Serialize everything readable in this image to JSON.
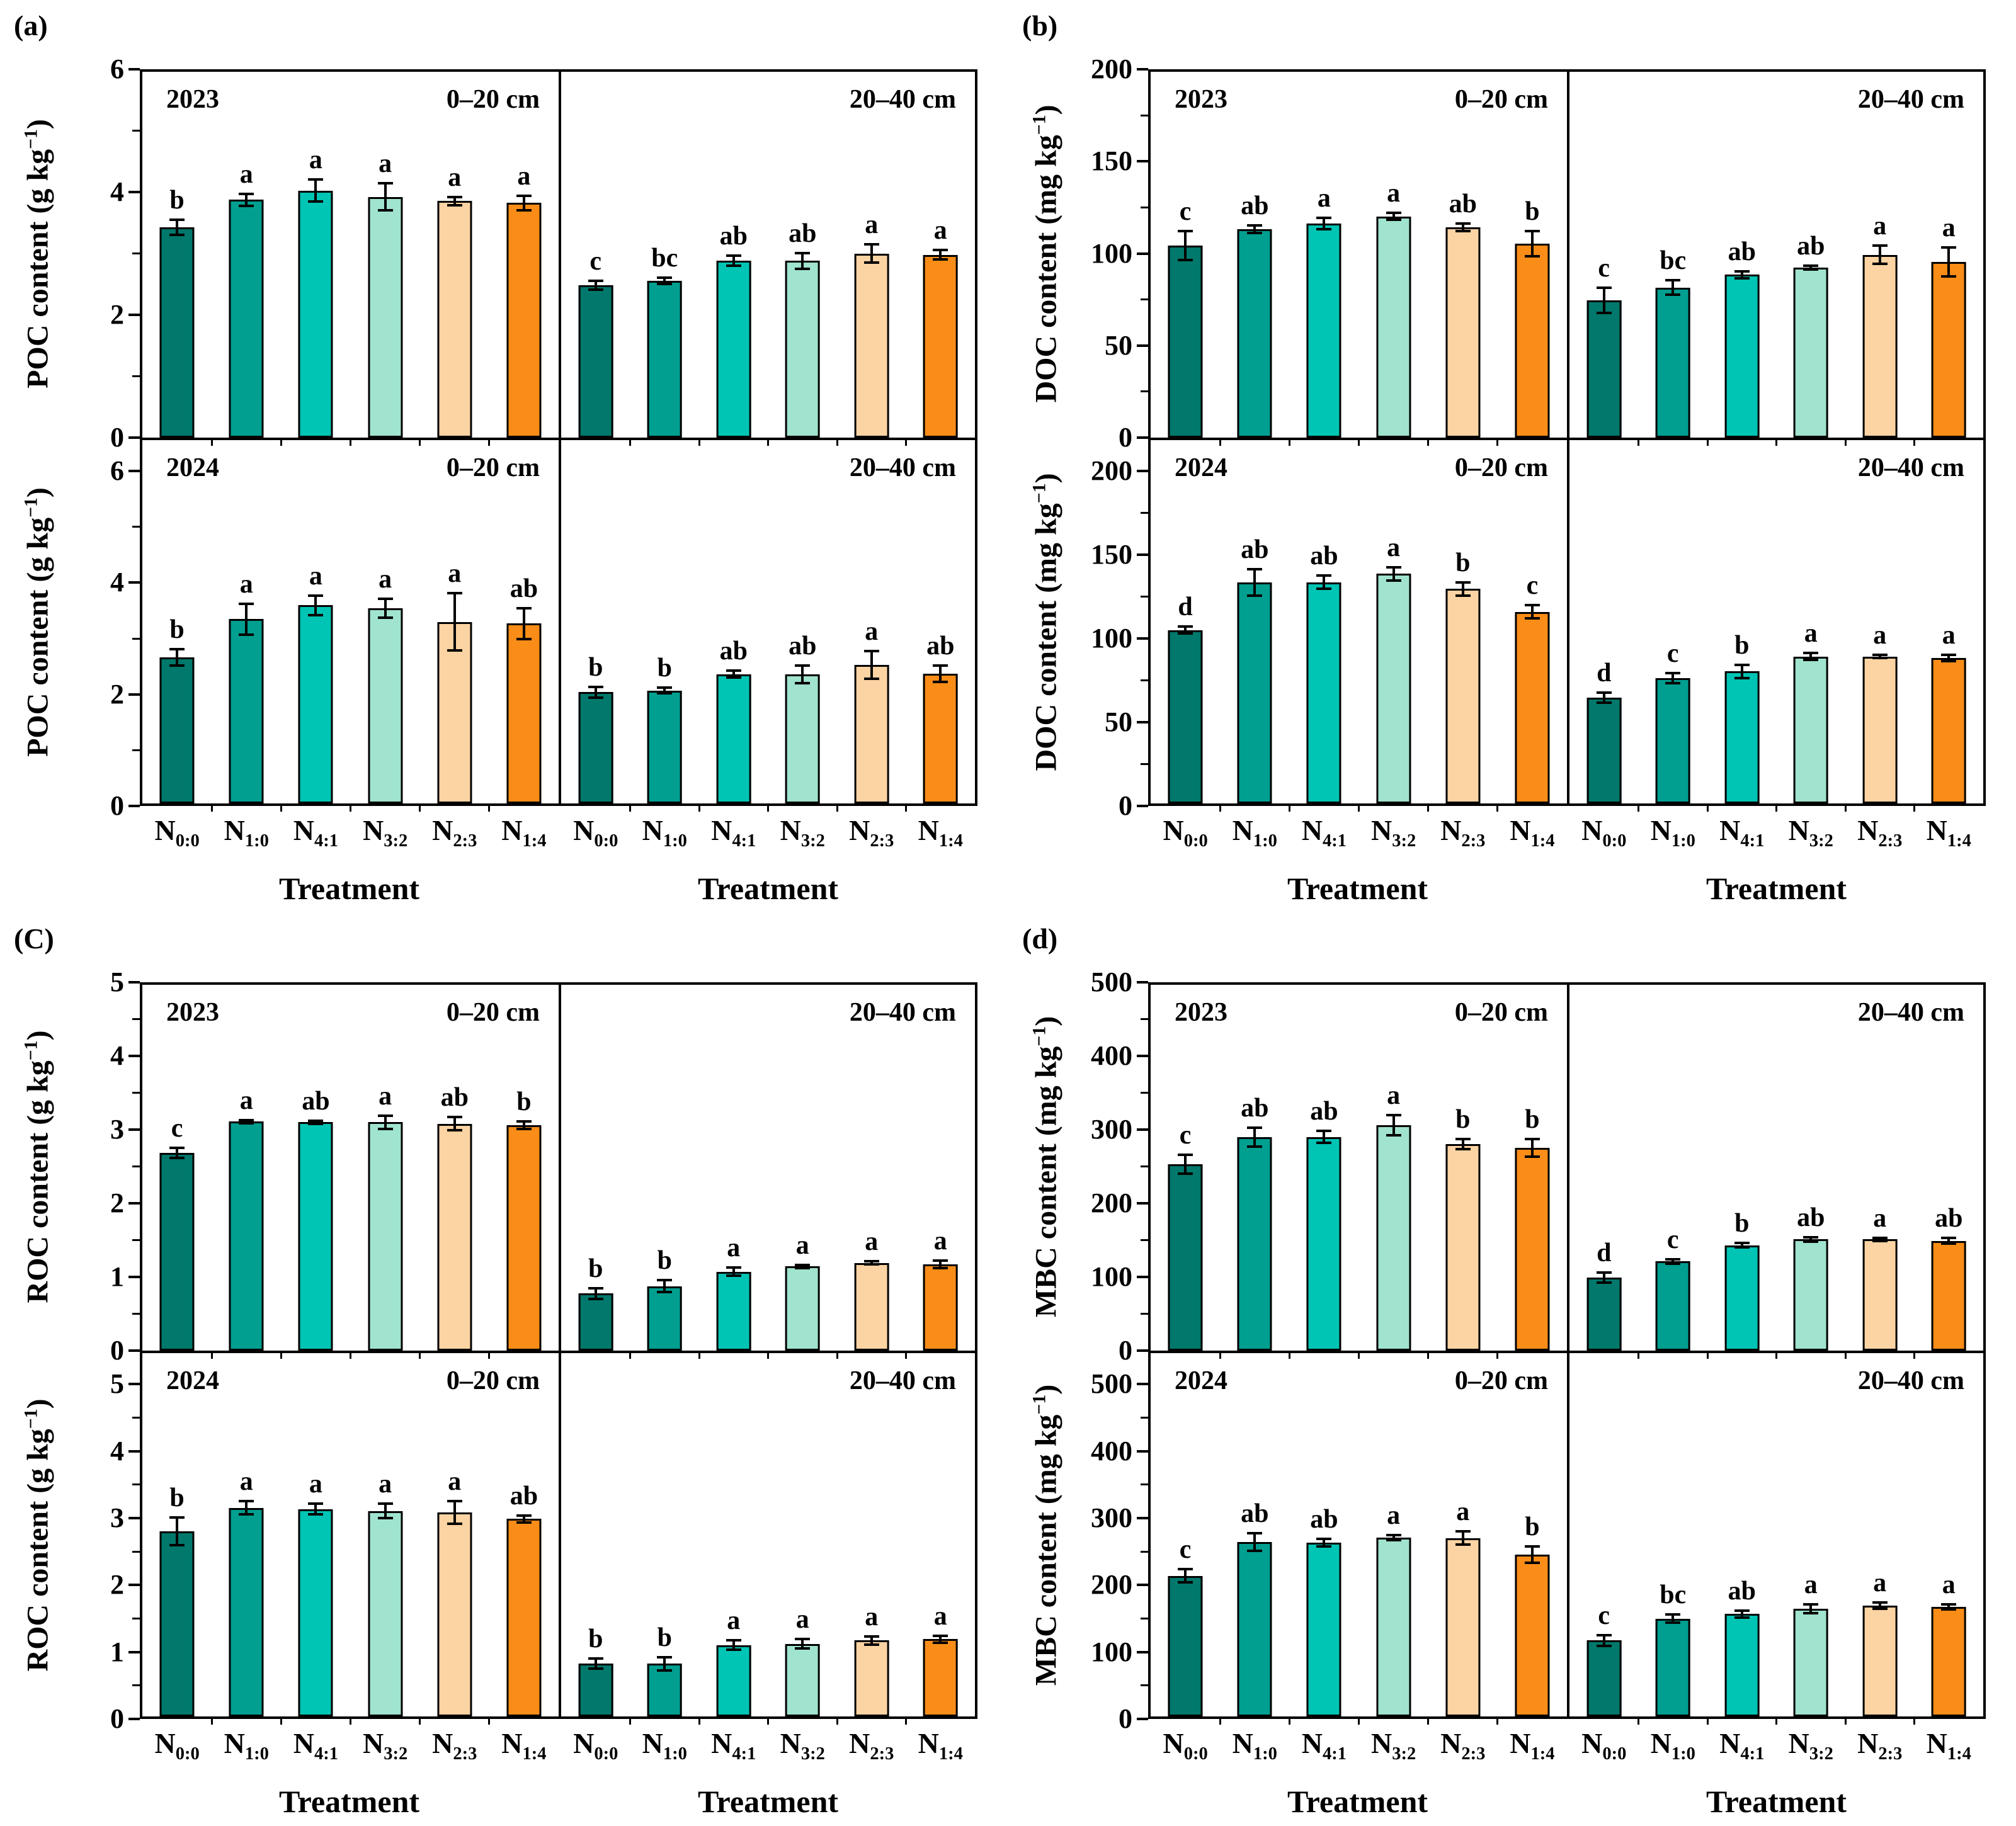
{
  "chart_data": {
    "type": "bar",
    "x_axis_title": "Treatment",
    "categories": [
      {
        "base": "N",
        "sub": "0:0"
      },
      {
        "base": "N",
        "sub": "1:0"
      },
      {
        "base": "N",
        "sub": "4:1"
      },
      {
        "base": "N",
        "sub": "3:2"
      },
      {
        "base": "N",
        "sub": "2:3"
      },
      {
        "base": "N",
        "sub": "1:4"
      }
    ],
    "bar_colors": [
      "#00786b",
      "#009f90",
      "#00c5b4",
      "#a0e3cf",
      "#fcd3a2",
      "#fa8d17"
    ],
    "axis_color": "#000000",
    "error_bar_color": "#000000",
    "panels": [
      {
        "label": "(a)",
        "ylabel": {
          "pre": "POC content (g kg",
          "sup": "−1",
          "post": ")"
        },
        "ymax": 6,
        "yticks": [
          0,
          2,
          4,
          6
        ],
        "ytick_step": 2,
        "rows": [
          {
            "year": "2023",
            "headroom": 1.0,
            "subplots": [
              {
                "depth": "0–20 cm",
                "values": [
                  3.45,
                  3.9,
                  4.05,
                  3.95,
                  3.88,
                  3.85
                ],
                "errors": [
                  0.12,
                  0.1,
                  0.18,
                  0.22,
                  0.07,
                  0.12
                ],
                "letters": [
                  "b",
                  "a",
                  "a",
                  "a",
                  "a",
                  "a"
                ]
              },
              {
                "depth": "20–40 cm",
                "values": [
                  2.5,
                  2.57,
                  2.9,
                  2.9,
                  3.02,
                  3.0
                ],
                "errors": [
                  0.07,
                  0.05,
                  0.08,
                  0.13,
                  0.15,
                  0.08
                ],
                "letters": [
                  "c",
                  "bc",
                  "ab",
                  "ab",
                  "a",
                  "a"
                ]
              }
            ]
          },
          {
            "year": "2024",
            "headroom": 1.1,
            "subplots": [
              {
                "depth": "0–20 cm",
                "values": [
                  2.65,
                  3.35,
                  3.6,
                  3.55,
                  3.3,
                  3.27
                ],
                "errors": [
                  0.15,
                  0.28,
                  0.18,
                  0.17,
                  0.52,
                  0.28
                ],
                "letters": [
                  "b",
                  "a",
                  "a",
                  "a",
                  "a",
                  "ab"
                ]
              },
              {
                "depth": "20–40 cm",
                "values": [
                  2.02,
                  2.05,
                  2.35,
                  2.35,
                  2.52,
                  2.36
                ],
                "errors": [
                  0.1,
                  0.05,
                  0.06,
                  0.16,
                  0.25,
                  0.15
                ],
                "letters": [
                  "b",
                  "b",
                  "ab",
                  "ab",
                  "a",
                  "ab"
                ]
              }
            ]
          }
        ]
      },
      {
        "label": "(b)",
        "ylabel": {
          "pre": "DOC content (mg kg",
          "sup": "−1",
          "post": ")"
        },
        "ymax": 200,
        "yticks": [
          0,
          50,
          100,
          150,
          200
        ],
        "ytick_step": 50,
        "rows": [
          {
            "year": "2023",
            "headroom": 1.0,
            "subplots": [
              {
                "depth": "0–20 cm",
                "values": [
                  105,
                  114,
                  117,
                  121,
                  115,
                  106
                ],
                "errors": [
                  8,
                  2,
                  3,
                  2,
                  2,
                  7
                ],
                "letters": [
                  "c",
                  "ab",
                  "a",
                  "a",
                  "ab",
                  "b"
                ]
              },
              {
                "depth": "20–40 cm",
                "values": [
                  75,
                  82,
                  89,
                  93,
                  100,
                  96
                ],
                "errors": [
                  7,
                  4,
                  2,
                  1,
                  5,
                  8
                ],
                "letters": [
                  "c",
                  "bc",
                  "ab",
                  "ab",
                  "a",
                  "a"
                ]
              }
            ]
          },
          {
            "year": "2024",
            "headroom": 1.1,
            "subplots": [
              {
                "depth": "0–20 cm",
                "values": [
                  105,
                  134,
                  134,
                  139,
                  130,
                  116
                ],
                "errors": [
                  2,
                  8,
                  4,
                  4,
                  4,
                  4
                ],
                "letters": [
                  "d",
                  "ab",
                  "ab",
                  "a",
                  "b",
                  "c"
                ]
              },
              {
                "depth": "20–40 cm",
                "values": [
                  64,
                  76,
                  80,
                  89,
                  89,
                  88
                ],
                "errors": [
                  3,
                  3,
                  4,
                  2,
                  1,
                  2
                ],
                "letters": [
                  "d",
                  "c",
                  "b",
                  "a",
                  "a",
                  "a"
                ]
              }
            ]
          }
        ]
      },
      {
        "label": "(C)",
        "ylabel": {
          "pre": "ROC content (g kg",
          "sup": "−1",
          "post": ")"
        },
        "ymax": 5,
        "yticks": [
          0,
          1,
          2,
          3,
          4,
          5
        ],
        "ytick_step": 1,
        "rows": [
          {
            "year": "2023",
            "headroom": 1.0,
            "subplots": [
              {
                "depth": "0–20 cm",
                "values": [
                  2.7,
                  3.13,
                  3.12,
                  3.12,
                  3.1,
                  3.08
                ],
                "errors": [
                  0.07,
                  0.02,
                  0.02,
                  0.09,
                  0.09,
                  0.05
                ],
                "letters": [
                  "c",
                  "a",
                  "ab",
                  "a",
                  "ab",
                  "b"
                ]
              },
              {
                "depth": "20–40 cm",
                "values": [
                  0.78,
                  0.88,
                  1.08,
                  1.15,
                  1.2,
                  1.18
                ],
                "errors": [
                  0.07,
                  0.08,
                  0.06,
                  0.02,
                  0.02,
                  0.05
                ],
                "letters": [
                  "b",
                  "b",
                  "a",
                  "a",
                  "a",
                  "a"
                ]
              }
            ]
          },
          {
            "year": "2024",
            "headroom": 1.1,
            "subplots": [
              {
                "depth": "0–20 cm",
                "values": [
                  2.8,
                  3.16,
                  3.14,
                  3.11,
                  3.09,
                  2.99
                ],
                "errors": [
                  0.21,
                  0.1,
                  0.08,
                  0.11,
                  0.17,
                  0.05
                ],
                "letters": [
                  "b",
                  "a",
                  "a",
                  "a",
                  "a",
                  "ab"
                ]
              },
              {
                "depth": "20–40 cm",
                "values": [
                  0.8,
                  0.8,
                  1.08,
                  1.1,
                  1.15,
                  1.17
                ],
                "errors": [
                  0.08,
                  0.1,
                  0.07,
                  0.07,
                  0.06,
                  0.05
                ],
                "letters": [
                  "b",
                  "b",
                  "a",
                  "a",
                  "a",
                  "a"
                ]
              }
            ]
          }
        ]
      },
      {
        "label": "(d)",
        "ylabel": {
          "pre": "MBC content (mg kg",
          "sup": "−1",
          "post": ")"
        },
        "ymax": 500,
        "yticks": [
          0,
          100,
          200,
          300,
          400,
          500
        ],
        "ytick_step": 100,
        "rows": [
          {
            "year": "2023",
            "headroom": 1.0,
            "subplots": [
              {
                "depth": "0–20 cm",
                "values": [
                  255,
                  292,
                  292,
                  308,
                  282,
                  277
                ],
                "errors": [
                  13,
                  13,
                  8,
                  14,
                  7,
                  12
                ],
                "letters": [
                  "c",
                  "ab",
                  "ab",
                  "a",
                  "b",
                  "b"
                ]
              },
              {
                "depth": "20–40 cm",
                "values": [
                  100,
                  122,
                  144,
                  152,
                  152,
                  150
                ],
                "errors": [
                  7,
                  3,
                  3,
                  3,
                  2,
                  4
                ],
                "letters": [
                  "d",
                  "c",
                  "b",
                  "ab",
                  "a",
                  "ab"
                ]
              }
            ]
          },
          {
            "year": "2024",
            "headroom": 1.1,
            "subplots": [
              {
                "depth": "0–20 cm",
                "values": [
                  213,
                  264,
                  263,
                  271,
                  270,
                  245
                ],
                "errors": [
                  10,
                  13,
                  6,
                  4,
                  10,
                  12
                ],
                "letters": [
                  "c",
                  "ab",
                  "ab",
                  "a",
                  "a",
                  "b"
                ]
              },
              {
                "depth": "20–40 cm",
                "values": [
                  115,
                  148,
                  155,
                  163,
                  168,
                  166
                ],
                "errors": [
                  8,
                  6,
                  5,
                  7,
                  5,
                  4
                ],
                "letters": [
                  "c",
                  "bc",
                  "ab",
                  "a",
                  "a",
                  "a"
                ]
              }
            ]
          }
        ]
      }
    ]
  }
}
